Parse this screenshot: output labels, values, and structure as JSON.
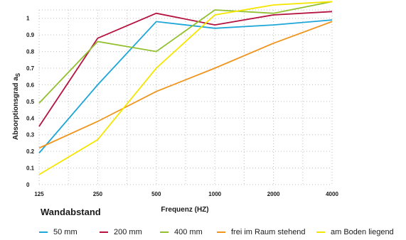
{
  "chart_data": {
    "type": "line",
    "x": [
      "125",
      "250",
      "500",
      "1000",
      "2000",
      "4000"
    ],
    "xlabel": "Frequenz (HZ)",
    "ylabel": "Absorptionsgrad a",
    "ylabel_sub": "S",
    "yticks": [
      "0",
      "0.1",
      "0.2",
      "0.3",
      "0.4",
      "0.5",
      "0.6",
      "0.7",
      "0.8",
      "0.9",
      "1"
    ],
    "ylim": [
      0,
      1.05
    ],
    "grid": true,
    "legend_title": "Wandabstand",
    "legend_position": "bottom",
    "series": [
      {
        "name": "50 mm",
        "color": "#1ea6d9",
        "values": [
          0.19,
          0.6,
          0.98,
          0.94,
          0.96,
          0.99
        ]
      },
      {
        "name": "200 mm",
        "color": "#b5123f",
        "values": [
          0.35,
          0.88,
          1.03,
          0.96,
          1.02,
          1.04
        ]
      },
      {
        "name": "400 mm",
        "color": "#92c02e",
        "values": [
          0.49,
          0.86,
          0.8,
          1.05,
          1.03,
          1.1
        ]
      },
      {
        "name": "frei im Raum stehend",
        "color": "#f0951e",
        "values": [
          0.22,
          0.38,
          0.56,
          0.7,
          0.85,
          0.98
        ]
      },
      {
        "name": "am Boden liegend",
        "color": "#f5e600",
        "values": [
          0.06,
          0.27,
          0.7,
          1.02,
          1.08,
          1.1
        ]
      }
    ]
  }
}
